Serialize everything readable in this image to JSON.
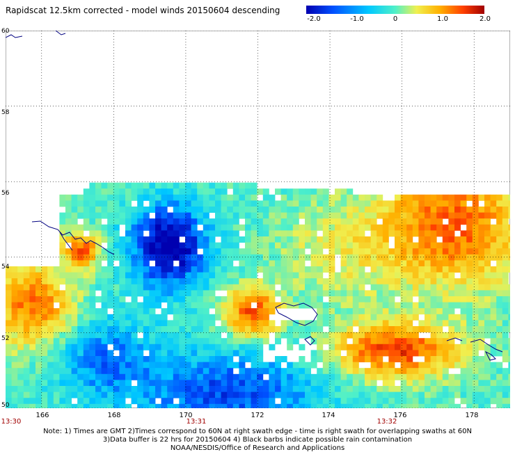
{
  "title": "Rapidscat 12.5km corrected - model winds 20150604 descending",
  "colorbar": {
    "ticks": [
      "-2.0",
      "-1.0",
      "0",
      "1.0",
      "2.0"
    ],
    "range": [
      -2.0,
      2.0
    ],
    "colors": [
      "#0000b0",
      "#0050ff",
      "#00c8ff",
      "#50f0c8",
      "#f0f050",
      "#ffb000",
      "#ff4000",
      "#a00000"
    ]
  },
  "map": {
    "lat_labels": [
      "60",
      "58",
      "56",
      "54",
      "52",
      "50"
    ],
    "lon_labels": [
      "166",
      "168",
      "170",
      "172",
      "174",
      "176",
      "178"
    ],
    "lat_range": [
      50,
      60
    ],
    "lon_range": [
      165,
      179
    ],
    "gridlines": "dotted",
    "swath_top_lat": 56.3,
    "coast_color": "#000080"
  },
  "times": [
    "13:30",
    "13:31",
    "13:32"
  ],
  "notes": [
    "Note: 1) Times are GMT 2)Times correspond to 60N at right swath edge - time is right swath for overlapping swaths at 60N",
    "3)Data buffer is 22 hrs for 20150604 4) Black barbs indicate possible rain contamination",
    "NOAA/NESDIS/Office of Research and Applications"
  ]
}
